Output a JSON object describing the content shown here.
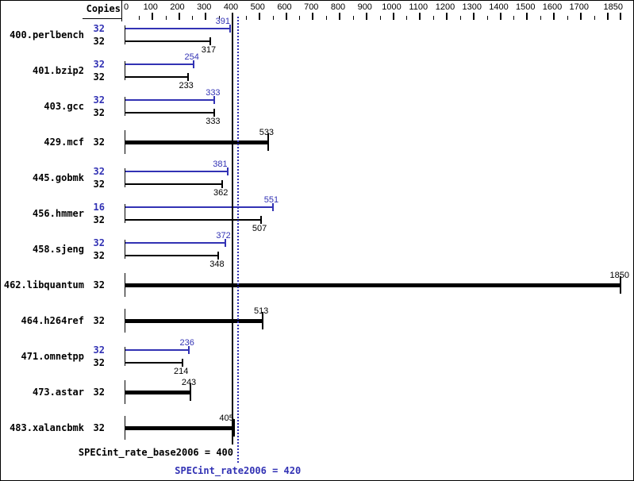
{
  "header": {
    "copies_label": "Copies"
  },
  "axis": {
    "tick_labels": [
      "0",
      "100",
      "200",
      "300",
      "400",
      "500",
      "600",
      "700",
      "800",
      "900",
      "1000",
      "1100",
      "1200",
      "1300",
      "1400",
      "1500",
      "1600",
      "1700",
      "1850"
    ],
    "min": 0,
    "max": 1850,
    "major_step": 100,
    "minor_step": 50
  },
  "colors": {
    "peak": "#3232b4",
    "base": "#000000",
    "background": "#ffffff"
  },
  "benchmarks": [
    {
      "name": "400.perlbench",
      "peak_copies": "32",
      "peak": 391,
      "base_copies": "32",
      "base": 317
    },
    {
      "name": "401.bzip2",
      "peak_copies": "32",
      "peak": 254,
      "base_copies": "32",
      "base": 233
    },
    {
      "name": "403.gcc",
      "peak_copies": "32",
      "peak": 333,
      "base_copies": "32",
      "base": 333
    },
    {
      "name": "429.mcf",
      "peak_copies": null,
      "peak": null,
      "base_copies": "32",
      "base": 533
    },
    {
      "name": "445.gobmk",
      "peak_copies": "32",
      "peak": 381,
      "base_copies": "32",
      "base": 362
    },
    {
      "name": "456.hmmer",
      "peak_copies": "16",
      "peak": 551,
      "base_copies": "32",
      "base": 507
    },
    {
      "name": "458.sjeng",
      "peak_copies": "32",
      "peak": 372,
      "base_copies": "32",
      "base": 348
    },
    {
      "name": "462.libquantum",
      "peak_copies": null,
      "peak": null,
      "base_copies": "32",
      "base": 1850
    },
    {
      "name": "464.h264ref",
      "peak_copies": null,
      "peak": null,
      "base_copies": "32",
      "base": 513
    },
    {
      "name": "471.omnetpp",
      "peak_copies": "32",
      "peak": 236,
      "base_copies": "32",
      "base": 214
    },
    {
      "name": "473.astar",
      "peak_copies": null,
      "peak": null,
      "base_copies": "32",
      "base": 243
    },
    {
      "name": "483.xalancbmk",
      "peak_copies": null,
      "peak": null,
      "base_copies": "32",
      "base": 405
    }
  ],
  "footer": {
    "base_label": "SPECint_rate_base2006 = 400",
    "peak_label": "SPECint_rate2006 = 420",
    "base_value": 400,
    "peak_value": 420
  },
  "chart_data": {
    "type": "bar",
    "orientation": "horizontal",
    "title": "",
    "categories": [
      "400.perlbench",
      "401.bzip2",
      "403.gcc",
      "429.mcf",
      "445.gobmk",
      "456.hmmer",
      "458.sjeng",
      "462.libquantum",
      "464.h264ref",
      "471.omnetpp",
      "473.astar",
      "483.xalancbmk"
    ],
    "series": [
      {
        "name": "SPECint_rate2006 (peak)",
        "color": "#3232b4",
        "copies": [
          32,
          32,
          32,
          null,
          32,
          16,
          32,
          null,
          null,
          32,
          null,
          null
        ],
        "values": [
          391,
          254,
          333,
          null,
          381,
          551,
          372,
          null,
          null,
          236,
          null,
          null
        ]
      },
      {
        "name": "SPECint_rate_base2006 (base)",
        "color": "#000000",
        "copies": [
          32,
          32,
          32,
          32,
          32,
          32,
          32,
          32,
          32,
          32,
          32,
          32
        ],
        "values": [
          317,
          233,
          333,
          533,
          362,
          507,
          348,
          1850,
          513,
          214,
          243,
          405
        ]
      }
    ],
    "x_axis": {
      "min": 0,
      "max": 1850,
      "major_step": 100,
      "minor_step": 50,
      "labeled_ticks": [
        0,
        100,
        200,
        300,
        400,
        500,
        600,
        700,
        800,
        900,
        1000,
        1100,
        1200,
        1300,
        1400,
        1500,
        1600,
        1700,
        1850
      ]
    },
    "reference_lines": [
      {
        "value": 400,
        "style": "solid",
        "color": "#000000",
        "label": "SPECint_rate_base2006 = 400"
      },
      {
        "value": 420,
        "style": "dotted",
        "color": "#3232b4",
        "label": "SPECint_rate2006 = 420"
      }
    ],
    "legend_position": "none",
    "grid": false
  }
}
